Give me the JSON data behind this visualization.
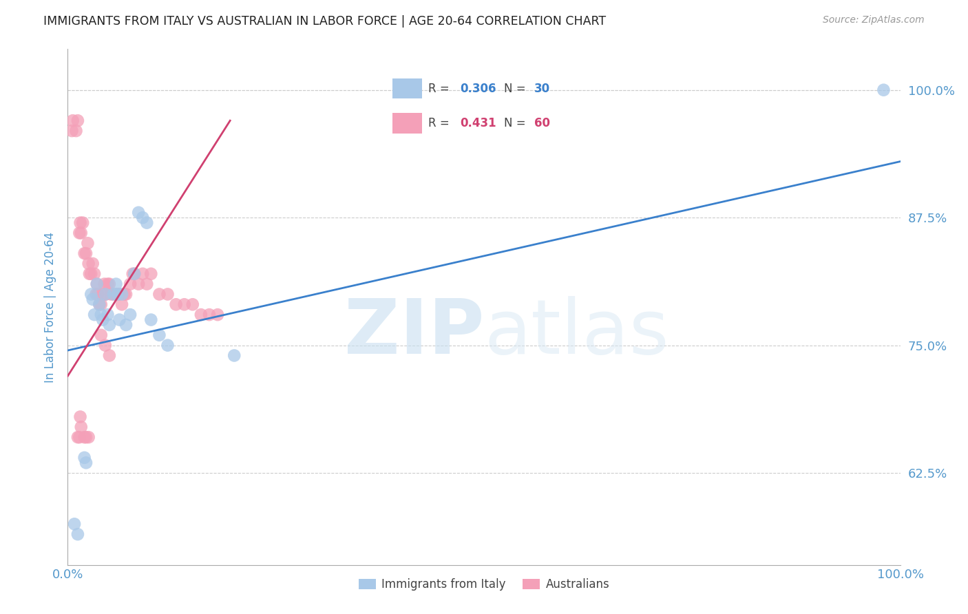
{
  "title": "IMMIGRANTS FROM ITALY VS AUSTRALIAN IN LABOR FORCE | AGE 20-64 CORRELATION CHART",
  "source": "Source: ZipAtlas.com",
  "ylabel": "In Labor Force | Age 20-64",
  "watermark": "ZIPatlas",
  "xlim": [
    0.0,
    1.0
  ],
  "ylim": [
    0.535,
    1.04
  ],
  "yticks": [
    0.625,
    0.75,
    0.875,
    1.0
  ],
  "ytick_labels": [
    "62.5%",
    "75.0%",
    "87.5%",
    "100.0%"
  ],
  "xticks": [
    0.0,
    0.2,
    0.4,
    0.6,
    0.8,
    1.0
  ],
  "xtick_labels": [
    "0.0%",
    "",
    "",
    "",
    "",
    "100.0%"
  ],
  "legend_blue_R": "0.306",
  "legend_blue_N": "30",
  "legend_pink_R": "0.431",
  "legend_pink_N": "60",
  "blue_color": "#a8c8e8",
  "pink_color": "#f4a0b8",
  "blue_line_color": "#3a80cc",
  "pink_line_color": "#d04070",
  "title_color": "#222222",
  "axis_label_color": "#5599cc",
  "tick_label_color": "#5599cc",
  "grid_color": "#cccccc",
  "blue_scatter_x": [
    0.008,
    0.012,
    0.02,
    0.022,
    0.028,
    0.03,
    0.032,
    0.035,
    0.038,
    0.04,
    0.042,
    0.045,
    0.048,
    0.05,
    0.055,
    0.058,
    0.06,
    0.062,
    0.065,
    0.07,
    0.075,
    0.08,
    0.085,
    0.09,
    0.095,
    0.1,
    0.11,
    0.12,
    0.2,
    0.98
  ],
  "blue_scatter_y": [
    0.575,
    0.565,
    0.64,
    0.635,
    0.8,
    0.795,
    0.78,
    0.81,
    0.79,
    0.78,
    0.775,
    0.8,
    0.78,
    0.77,
    0.8,
    0.81,
    0.8,
    0.775,
    0.8,
    0.77,
    0.78,
    0.82,
    0.88,
    0.875,
    0.87,
    0.775,
    0.76,
    0.75,
    0.74,
    1.0
  ],
  "pink_scatter_x": [
    0.005,
    0.006,
    0.01,
    0.012,
    0.014,
    0.015,
    0.016,
    0.018,
    0.02,
    0.022,
    0.024,
    0.025,
    0.026,
    0.028,
    0.03,
    0.032,
    0.034,
    0.035,
    0.036,
    0.038,
    0.04,
    0.042,
    0.044,
    0.045,
    0.046,
    0.048,
    0.05,
    0.052,
    0.055,
    0.058,
    0.06,
    0.062,
    0.065,
    0.068,
    0.07,
    0.075,
    0.078,
    0.08,
    0.085,
    0.09,
    0.095,
    0.1,
    0.11,
    0.12,
    0.13,
    0.14,
    0.15,
    0.16,
    0.17,
    0.18,
    0.015,
    0.016,
    0.02,
    0.022,
    0.025,
    0.04,
    0.045,
    0.05,
    0.012,
    0.014
  ],
  "pink_scatter_y": [
    0.96,
    0.97,
    0.96,
    0.97,
    0.86,
    0.87,
    0.86,
    0.87,
    0.84,
    0.84,
    0.85,
    0.83,
    0.82,
    0.82,
    0.83,
    0.82,
    0.8,
    0.81,
    0.8,
    0.79,
    0.79,
    0.8,
    0.81,
    0.8,
    0.8,
    0.81,
    0.81,
    0.8,
    0.8,
    0.8,
    0.8,
    0.8,
    0.79,
    0.8,
    0.8,
    0.81,
    0.82,
    0.82,
    0.81,
    0.82,
    0.81,
    0.82,
    0.8,
    0.8,
    0.79,
    0.79,
    0.79,
    0.78,
    0.78,
    0.78,
    0.68,
    0.67,
    0.66,
    0.66,
    0.66,
    0.76,
    0.75,
    0.74,
    0.66,
    0.66
  ],
  "blue_line_x0": 0.0,
  "blue_line_x1": 1.0,
  "blue_line_y0": 0.745,
  "blue_line_y1": 0.93,
  "pink_line_x0": 0.0,
  "pink_line_x1": 0.195,
  "pink_line_y0": 0.72,
  "pink_line_y1": 0.97
}
